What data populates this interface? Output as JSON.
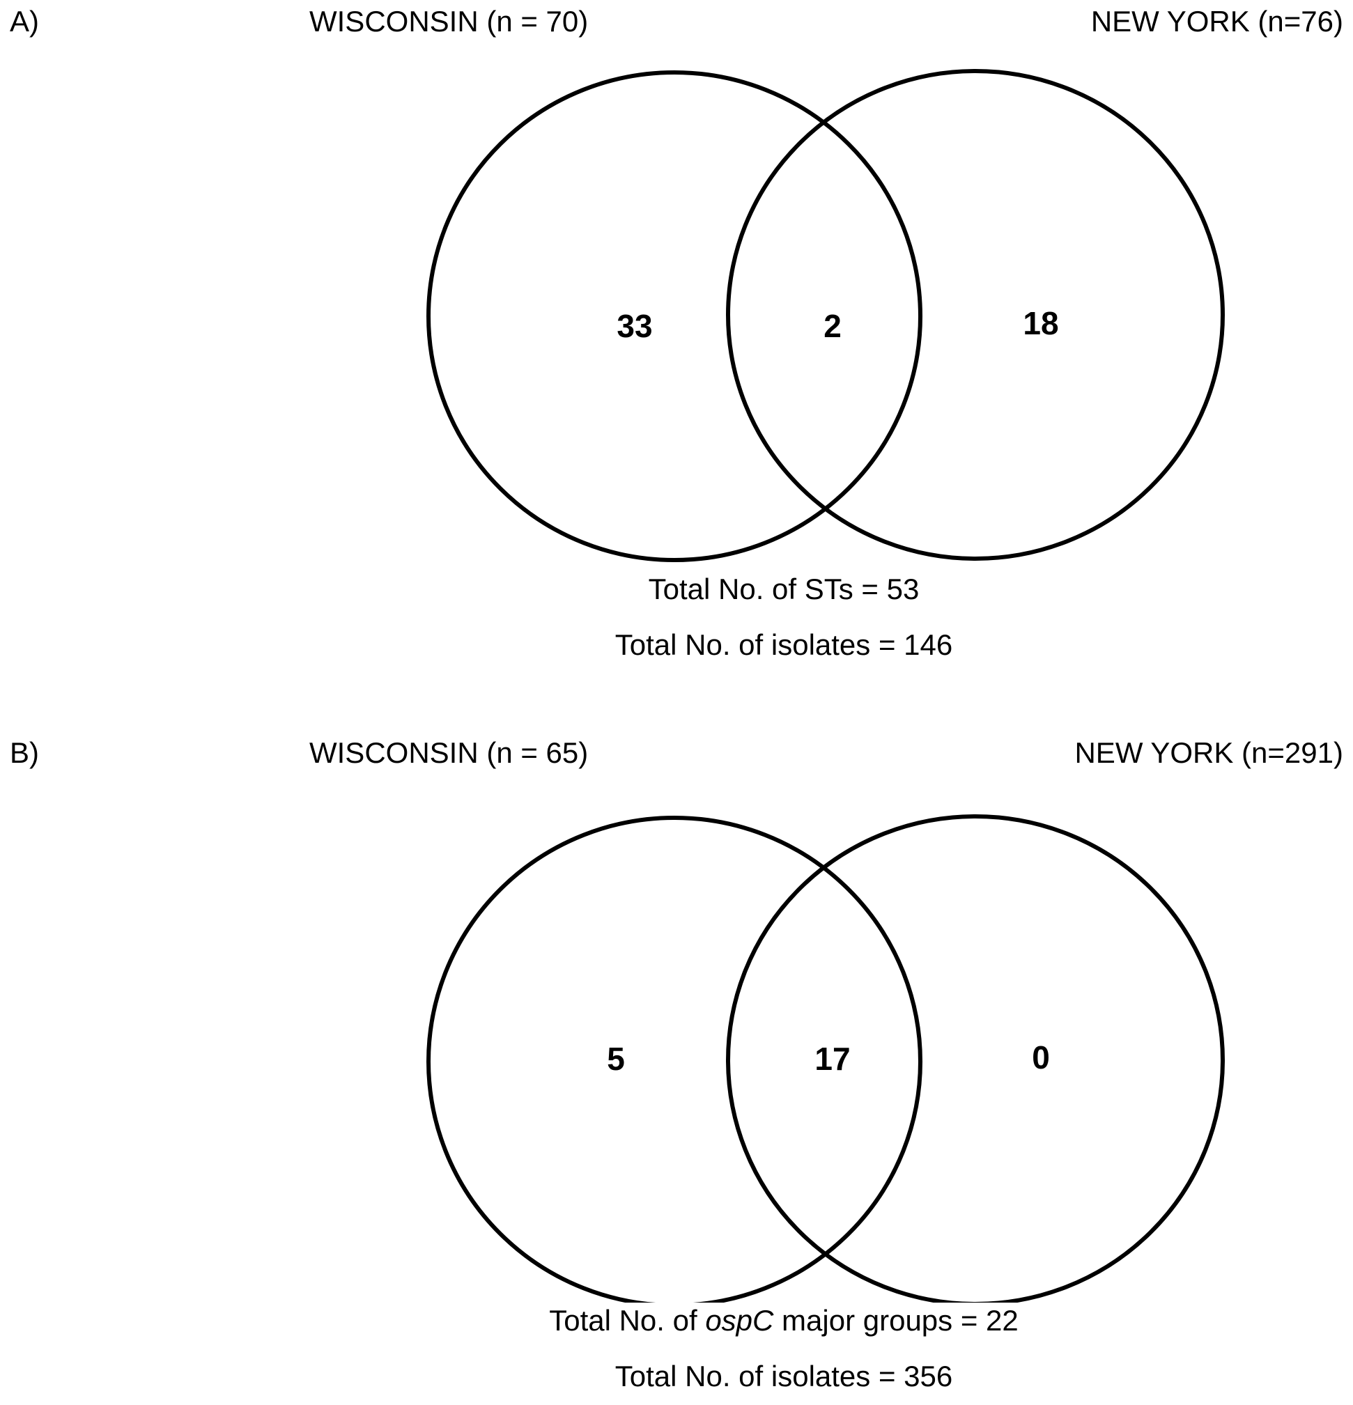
{
  "panels": [
    {
      "letter": "A)",
      "left_title": "WISCONSIN (n = 70)",
      "right_title": "NEW YORK (n=76)",
      "left_only": "33",
      "overlap": "2",
      "right_only": "18",
      "total_line_1": {
        "pre": "Total No. of STs = 53",
        "mid": "",
        "post": ""
      },
      "total_line_2": "Total No. of isolates = 146"
    },
    {
      "letter": "B)",
      "left_title": "WISCONSIN (n = 65)",
      "right_title": "NEW YORK (n=291)",
      "left_only": "5",
      "overlap": "17",
      "right_only": "0",
      "total_line_1": {
        "pre": "Total No. of ",
        "mid": "ospC",
        "post": " major groups = 22"
      },
      "total_line_2": "Total No. of isolates = 356"
    }
  ],
  "colors": {
    "stroke": "#000000",
    "background": "#ffffff"
  }
}
